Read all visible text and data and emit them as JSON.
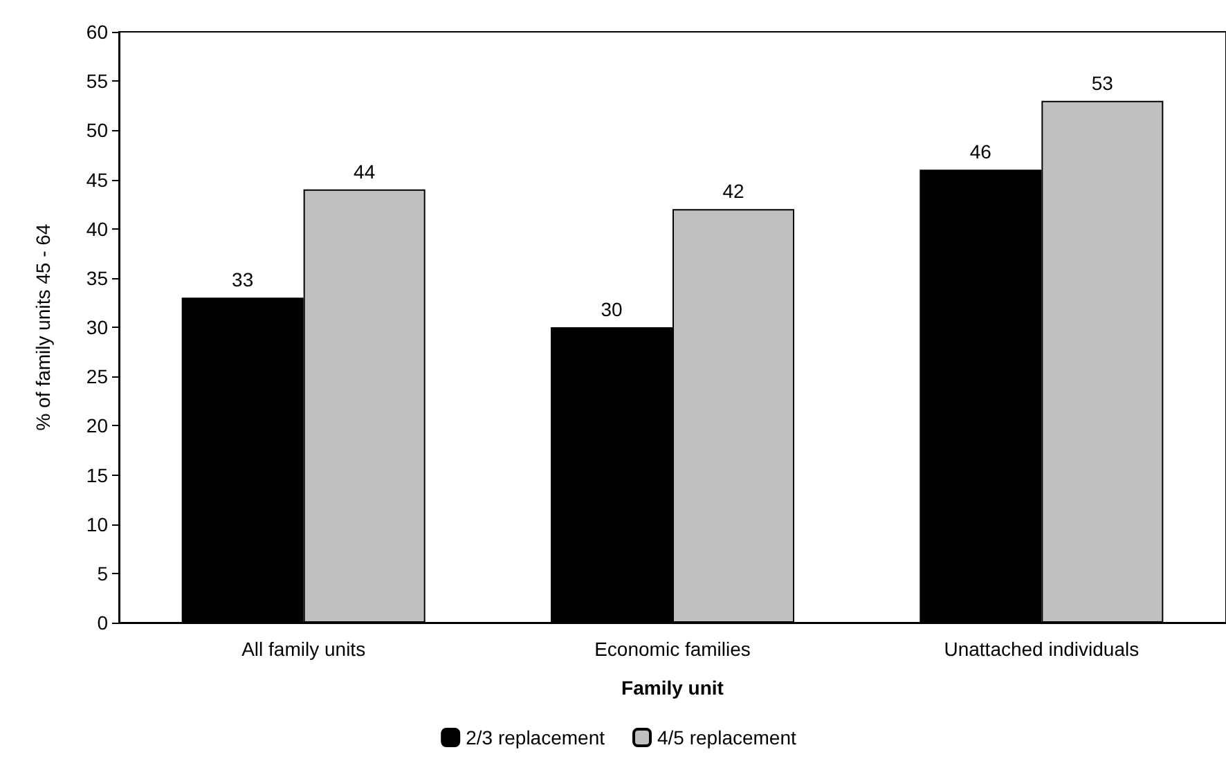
{
  "chart_data": {
    "type": "bar",
    "xlabel": "Family unit",
    "ylabel": "% of family units 45 - 64",
    "categories": [
      "All family units",
      "Economic families",
      "Unattached individuals"
    ],
    "series": [
      {
        "name": "2/3 replacement",
        "color": "#000000",
        "values": [
          33,
          30,
          46
        ]
      },
      {
        "name": "4/5 replacement",
        "color": "#c0c0c0",
        "values": [
          44,
          42,
          53
        ]
      }
    ],
    "ylim": [
      0,
      60
    ],
    "yticks": [
      0,
      5,
      10,
      15,
      20,
      25,
      30,
      35,
      40,
      45,
      50,
      55,
      60
    ],
    "grid": false,
    "legend": "bottom",
    "data_labels": true
  }
}
